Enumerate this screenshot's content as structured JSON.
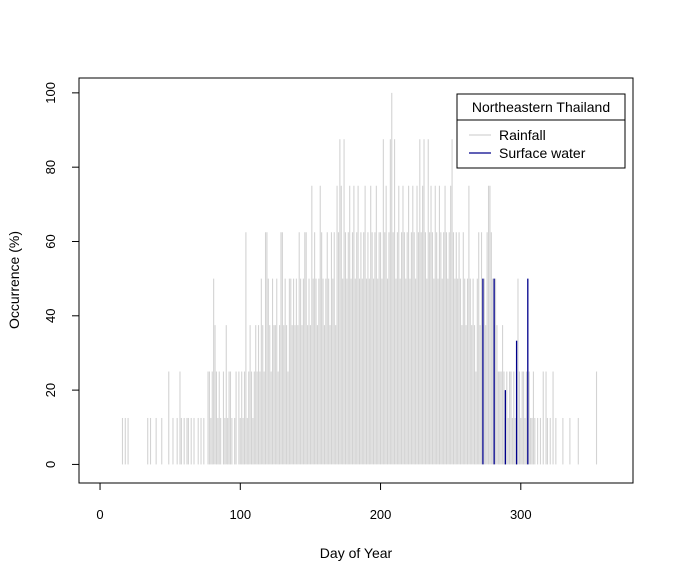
{
  "chart_data": {
    "type": "bar",
    "style": "histogram-spikes",
    "xlabel": "Day of Year",
    "ylabel": "Occurrence (%)",
    "xlim": [
      -15,
      380
    ],
    "ylim": [
      -5,
      104
    ],
    "xticks": [
      0,
      100,
      200,
      300
    ],
    "yticks": [
      0,
      20,
      40,
      60,
      80,
      100
    ],
    "grid": false,
    "legend": {
      "title": "Northeastern Thailand",
      "position": "top-right",
      "entries": [
        {
          "label": "Rainfall",
          "color": "#d3d3d3"
        },
        {
          "label": "Surface water",
          "color": "#00008b"
        }
      ]
    },
    "series": [
      {
        "name": "Rainfall",
        "color": "#d3d3d3",
        "points": [
          [
            16,
            12.5
          ],
          [
            18,
            12.5
          ],
          [
            20,
            12.5
          ],
          [
            34,
            12.5
          ],
          [
            36,
            12.5
          ],
          [
            40,
            12.5
          ],
          [
            44,
            12.5
          ],
          [
            49,
            25
          ],
          [
            52,
            12.5
          ],
          [
            55,
            12.5
          ],
          [
            57,
            25
          ],
          [
            58,
            12.5
          ],
          [
            60,
            12.5
          ],
          [
            62,
            12.5
          ],
          [
            63,
            12.5
          ],
          [
            65,
            12.5
          ],
          [
            67,
            12.5
          ],
          [
            70,
            12.5
          ],
          [
            72,
            12.5
          ],
          [
            74,
            12.5
          ],
          [
            77,
            25
          ],
          [
            78,
            25
          ],
          [
            79,
            12.5
          ],
          [
            80,
            25
          ],
          [
            81,
            50
          ],
          [
            82,
            37.5
          ],
          [
            83,
            25
          ],
          [
            84,
            12.5
          ],
          [
            85,
            25
          ],
          [
            86,
            12.5
          ],
          [
            88,
            25
          ],
          [
            89,
            12.5
          ],
          [
            90,
            37.5
          ],
          [
            91,
            12.5
          ],
          [
            92,
            25
          ],
          [
            93,
            25
          ],
          [
            94,
            12.5
          ],
          [
            96,
            12.5
          ],
          [
            97,
            25
          ],
          [
            99,
            25
          ],
          [
            100,
            12.5
          ],
          [
            101,
            25
          ],
          [
            102,
            12.5
          ],
          [
            103,
            25
          ],
          [
            104,
            62.5
          ],
          [
            105,
            12.5
          ],
          [
            106,
            25
          ],
          [
            107,
            37.5
          ],
          [
            108,
            25
          ],
          [
            109,
            12.5
          ],
          [
            110,
            25
          ],
          [
            111,
            37.5
          ],
          [
            112,
            25
          ],
          [
            113,
            37.5
          ],
          [
            114,
            25
          ],
          [
            115,
            50
          ],
          [
            116,
            37.5
          ],
          [
            117,
            25
          ],
          [
            118,
            62.5
          ],
          [
            119,
            62.5
          ],
          [
            120,
            50
          ],
          [
            121,
            37.5
          ],
          [
            122,
            25
          ],
          [
            123,
            50
          ],
          [
            124,
            37.5
          ],
          [
            125,
            37.5
          ],
          [
            126,
            50
          ],
          [
            127,
            25
          ],
          [
            128,
            37.5
          ],
          [
            129,
            62.5
          ],
          [
            130,
            62.5
          ],
          [
            131,
            37.5
          ],
          [
            132,
            50
          ],
          [
            133,
            37.5
          ],
          [
            134,
            25
          ],
          [
            135,
            50
          ],
          [
            136,
            50
          ],
          [
            137,
            37.5
          ],
          [
            138,
            50
          ],
          [
            139,
            37.5
          ],
          [
            140,
            50
          ],
          [
            141,
            37.5
          ],
          [
            142,
            62.5
          ],
          [
            143,
            50
          ],
          [
            144,
            37.5
          ],
          [
            145,
            50
          ],
          [
            146,
            62.5
          ],
          [
            147,
            62.5
          ],
          [
            148,
            37.5
          ],
          [
            149,
            50
          ],
          [
            150,
            37.5
          ],
          [
            151,
            75
          ],
          [
            152,
            50
          ],
          [
            153,
            62.5
          ],
          [
            154,
            50
          ],
          [
            155,
            37.5
          ],
          [
            156,
            50
          ],
          [
            157,
            75
          ],
          [
            158,
            62.5
          ],
          [
            159,
            50
          ],
          [
            160,
            37.5
          ],
          [
            161,
            50
          ],
          [
            162,
            62.5
          ],
          [
            163,
            50
          ],
          [
            164,
            37.5
          ],
          [
            165,
            62.5
          ],
          [
            166,
            50
          ],
          [
            167,
            62.5
          ],
          [
            168,
            37.5
          ],
          [
            169,
            75
          ],
          [
            170,
            62.5
          ],
          [
            171,
            87.5
          ],
          [
            172,
            75
          ],
          [
            173,
            50
          ],
          [
            174,
            87.5
          ],
          [
            175,
            62.5
          ],
          [
            176,
            50
          ],
          [
            177,
            62.5
          ],
          [
            178,
            75
          ],
          [
            179,
            50
          ],
          [
            180,
            62.5
          ],
          [
            181,
            75
          ],
          [
            182,
            50
          ],
          [
            183,
            62.5
          ],
          [
            184,
            75
          ],
          [
            185,
            50
          ],
          [
            186,
            62.5
          ],
          [
            187,
            50
          ],
          [
            188,
            62.5
          ],
          [
            189,
            75
          ],
          [
            190,
            50
          ],
          [
            191,
            62.5
          ],
          [
            192,
            50
          ],
          [
            193,
            75
          ],
          [
            194,
            62.5
          ],
          [
            195,
            50
          ],
          [
            196,
            62.5
          ],
          [
            197,
            75
          ],
          [
            198,
            50
          ],
          [
            199,
            62.5
          ],
          [
            200,
            62.5
          ],
          [
            201,
            50
          ],
          [
            202,
            87.5
          ],
          [
            203,
            62.5
          ],
          [
            204,
            75
          ],
          [
            205,
            50
          ],
          [
            206,
            62.5
          ],
          [
            207,
            87.5
          ],
          [
            208,
            100
          ],
          [
            209,
            62.5
          ],
          [
            210,
            87.5
          ],
          [
            211,
            50
          ],
          [
            212,
            62.5
          ],
          [
            213,
            75
          ],
          [
            214,
            50
          ],
          [
            215,
            62.5
          ],
          [
            216,
            75
          ],
          [
            217,
            62.5
          ],
          [
            218,
            50
          ],
          [
            219,
            62.5
          ],
          [
            220,
            75
          ],
          [
            221,
            50
          ],
          [
            222,
            62.5
          ],
          [
            223,
            75
          ],
          [
            224,
            62.5
          ],
          [
            225,
            50
          ],
          [
            226,
            75
          ],
          [
            227,
            62.5
          ],
          [
            228,
            87.5
          ],
          [
            229,
            62.5
          ],
          [
            230,
            75
          ],
          [
            231,
            87.5
          ],
          [
            232,
            62.5
          ],
          [
            233,
            50
          ],
          [
            234,
            87.5
          ],
          [
            235,
            62.5
          ],
          [
            236,
            75
          ],
          [
            237,
            62.5
          ],
          [
            238,
            50
          ],
          [
            239,
            75
          ],
          [
            240,
            62.5
          ],
          [
            241,
            50
          ],
          [
            242,
            75
          ],
          [
            243,
            62.5
          ],
          [
            244,
            50
          ],
          [
            245,
            62.5
          ],
          [
            246,
            75
          ],
          [
            247,
            62.5
          ],
          [
            248,
            50
          ],
          [
            249,
            62.5
          ],
          [
            250,
            75
          ],
          [
            251,
            87.5
          ],
          [
            252,
            62.5
          ],
          [
            253,
            50
          ],
          [
            254,
            62.5
          ],
          [
            255,
            50
          ],
          [
            256,
            62.5
          ],
          [
            257,
            50
          ],
          [
            258,
            37.5
          ],
          [
            259,
            62.5
          ],
          [
            260,
            50
          ],
          [
            261,
            37.5
          ],
          [
            262,
            50
          ],
          [
            263,
            75
          ],
          [
            264,
            50
          ],
          [
            265,
            37.5
          ],
          [
            266,
            50
          ],
          [
            267,
            37.5
          ],
          [
            268,
            25
          ],
          [
            269,
            50
          ],
          [
            270,
            62.5
          ],
          [
            271,
            37.5
          ],
          [
            272,
            62.5
          ],
          [
            273,
            37.5
          ],
          [
            274,
            50
          ],
          [
            275,
            37.5
          ],
          [
            276,
            62.5
          ],
          [
            277,
            75
          ],
          [
            278,
            75
          ],
          [
            279,
            62.5
          ],
          [
            280,
            50
          ],
          [
            281,
            37.5
          ],
          [
            282,
            50
          ],
          [
            283,
            37.5
          ],
          [
            284,
            25
          ],
          [
            285,
            25
          ],
          [
            286,
            25
          ],
          [
            287,
            37.5
          ],
          [
            288,
            25
          ],
          [
            289,
            12.5
          ],
          [
            290,
            25
          ],
          [
            291,
            12.5
          ],
          [
            292,
            25
          ],
          [
            293,
            25
          ],
          [
            294,
            12.5
          ],
          [
            295,
            25
          ],
          [
            296,
            12.5
          ],
          [
            297,
            25
          ],
          [
            298,
            50
          ],
          [
            299,
            25
          ],
          [
            300,
            12.5
          ],
          [
            301,
            25
          ],
          [
            302,
            25
          ],
          [
            303,
            12.5
          ],
          [
            304,
            25
          ],
          [
            305,
            12.5
          ],
          [
            306,
            25
          ],
          [
            307,
            12.5
          ],
          [
            308,
            12.5
          ],
          [
            309,
            25
          ],
          [
            310,
            12.5
          ],
          [
            312,
            12.5
          ],
          [
            314,
            12.5
          ],
          [
            316,
            25
          ],
          [
            318,
            25
          ],
          [
            319,
            12.5
          ],
          [
            321,
            12.5
          ],
          [
            323,
            25
          ],
          [
            325,
            12.5
          ],
          [
            330,
            12.5
          ],
          [
            335,
            12.5
          ],
          [
            341,
            12.5
          ],
          [
            354,
            25
          ]
        ]
      },
      {
        "name": "Surface water",
        "color": "#00008b",
        "points": [
          [
            273,
            50
          ],
          [
            281,
            50
          ],
          [
            289,
            20
          ],
          [
            297,
            33.3
          ],
          [
            305,
            50
          ]
        ]
      }
    ]
  }
}
